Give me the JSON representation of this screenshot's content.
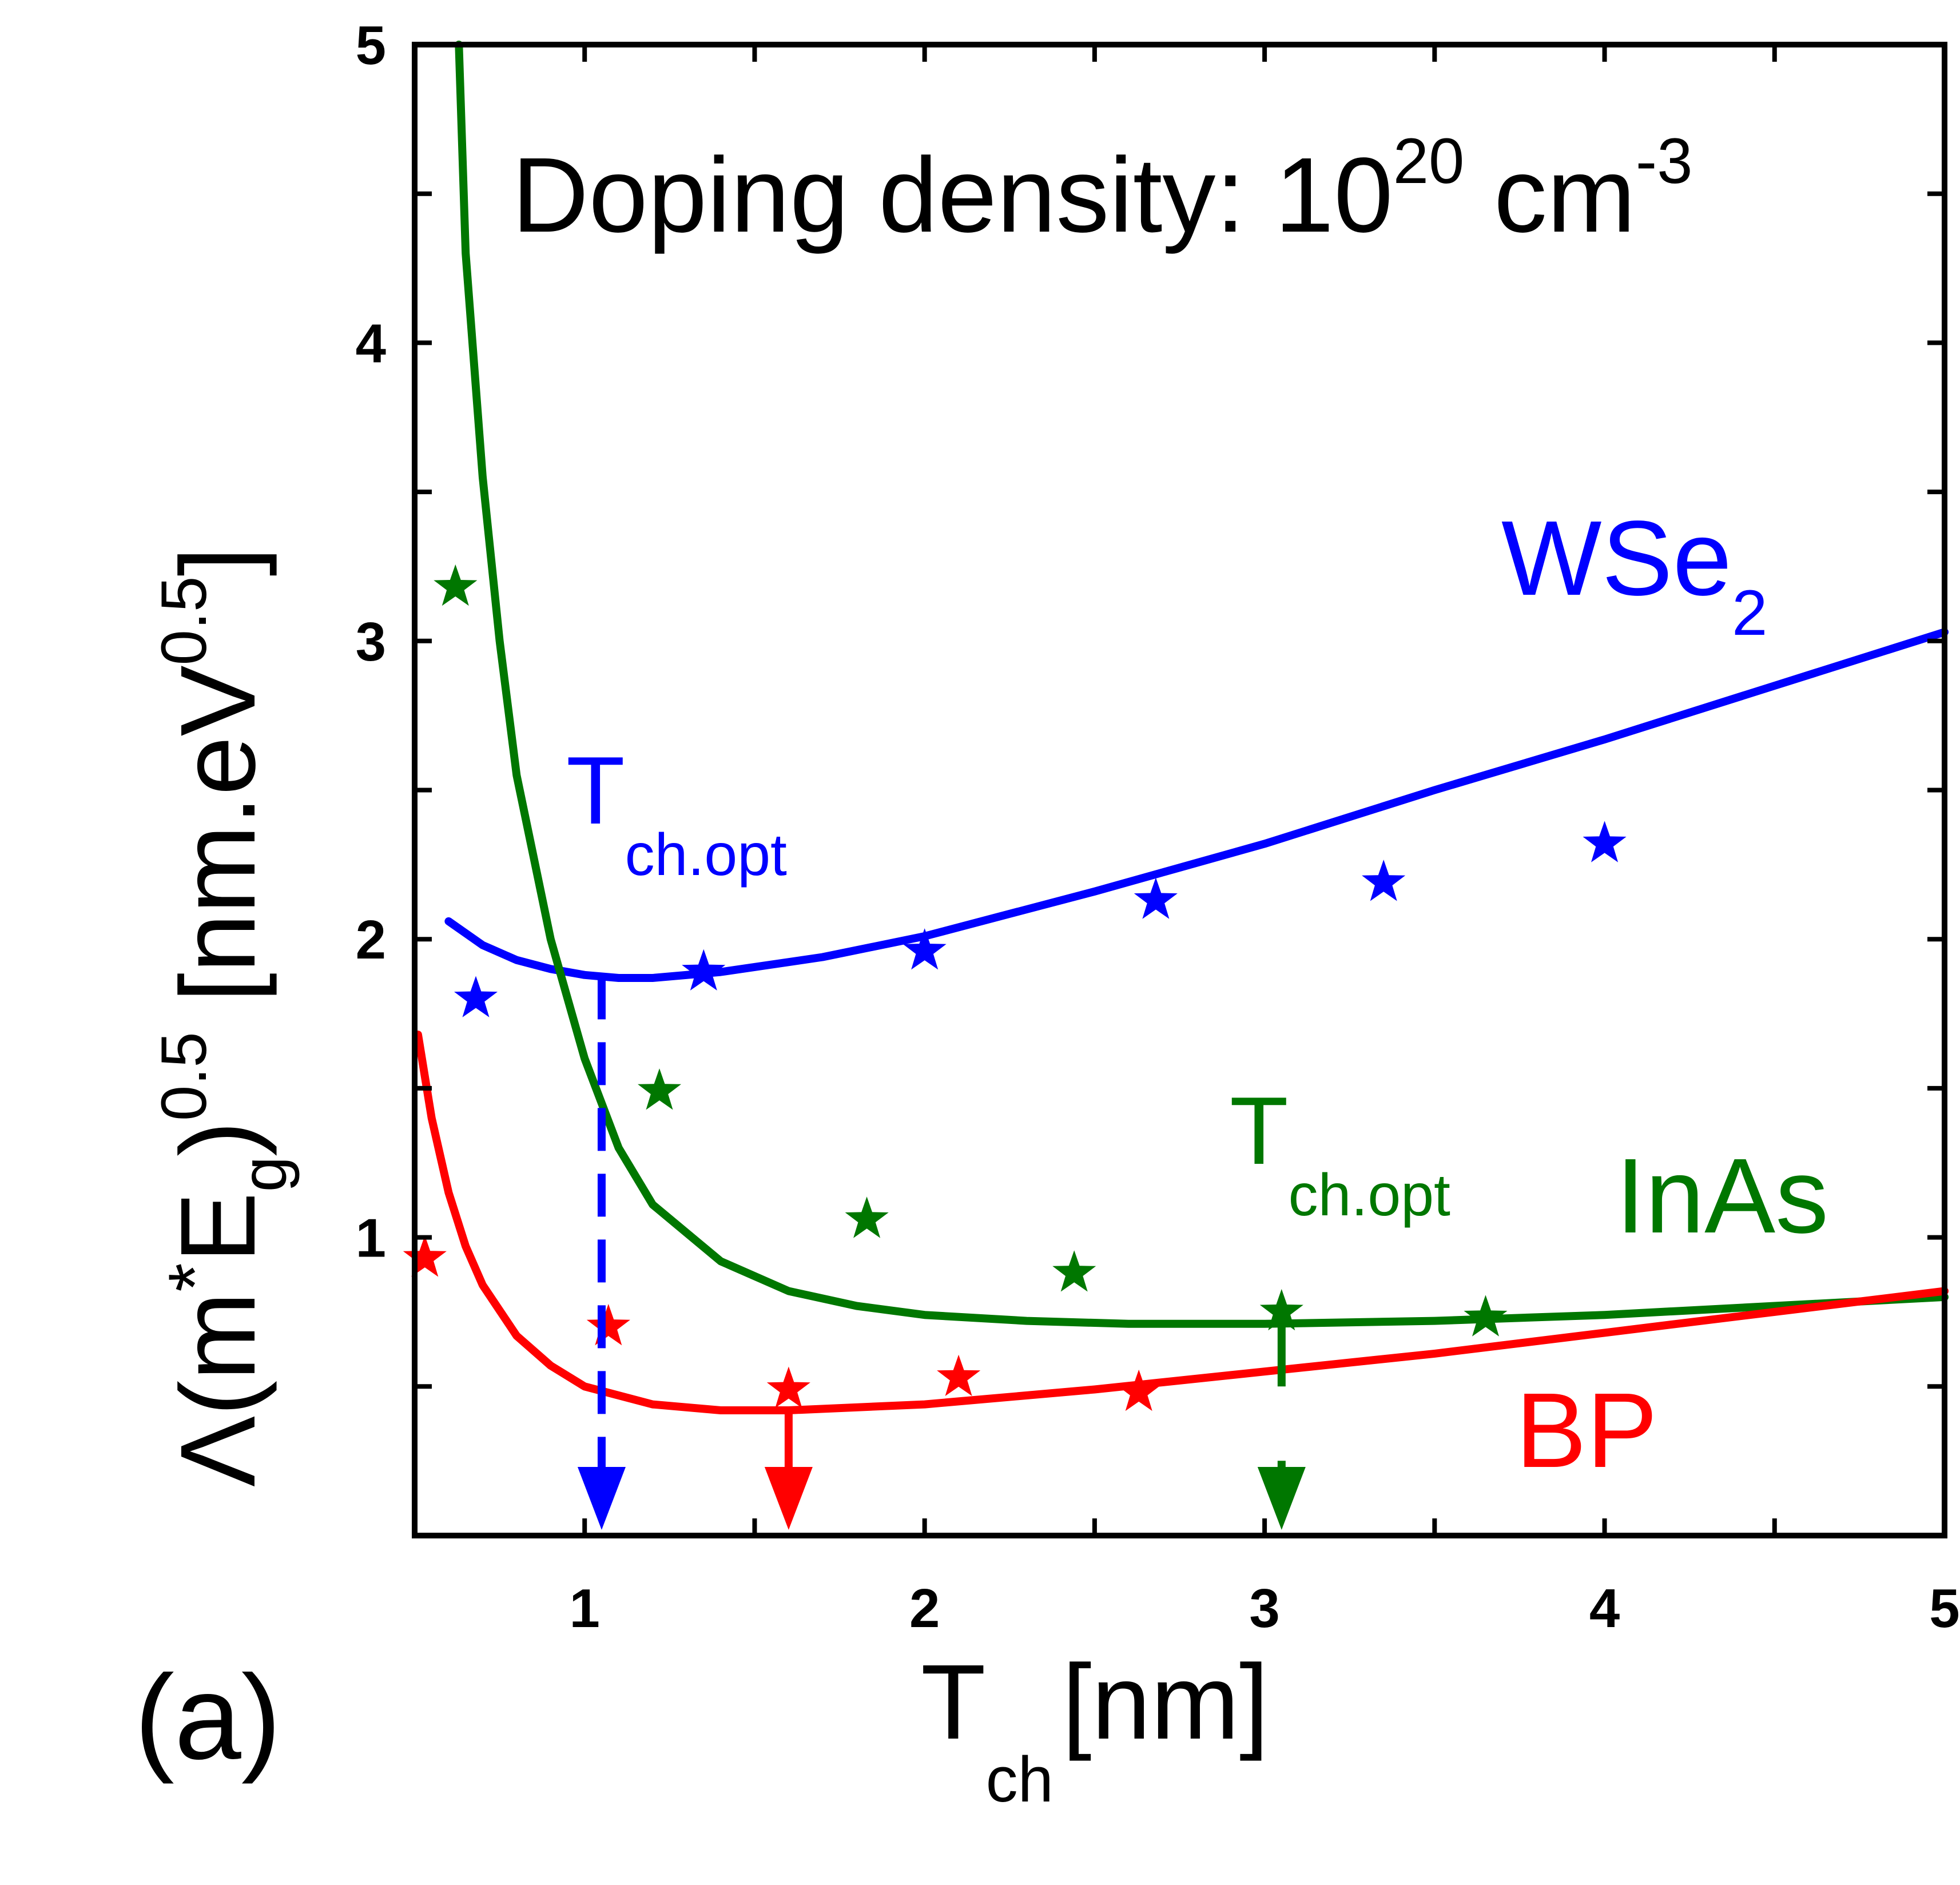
{
  "chart_data": {
    "type": "line",
    "xlabel": "T",
    "xlabel_sub": "ch",
    "xlabel_units": "[nm]",
    "ylabel": "Λ(m*Eg)^0.5 [nm.eV^0.5]",
    "ylabel_parts": {
      "lambda": "Λ(m",
      "star": "*",
      "E": "E",
      "g": "g",
      "close": ")",
      "pow": "0.5",
      "units": " [nm.eV",
      "units_pow": "0.5",
      "units_close": "]"
    },
    "xlim": [
      0.5,
      5
    ],
    "ylim": [
      0,
      5
    ],
    "xticks": [
      "1",
      "2",
      "3",
      "4",
      "5"
    ],
    "yticks": [
      "1",
      "2",
      "3",
      "4",
      "5"
    ],
    "panel_label": "(a)",
    "doping": {
      "text": "Doping density: 10",
      "exp": "20",
      "unit": " cm",
      "unit_exp": "-3"
    },
    "series": [
      {
        "name": "WSe",
        "name_sub": "2",
        "color": "#0000ff",
        "curve_x": [
          0.6,
          0.7,
          0.8,
          0.9,
          1.0,
          1.1,
          1.2,
          1.4,
          1.7,
          2.0,
          2.5,
          3.0,
          3.5,
          4.0,
          4.5,
          5.0
        ],
        "curve_y": [
          2.06,
          1.98,
          1.93,
          1.9,
          1.88,
          1.87,
          1.87,
          1.89,
          1.94,
          2.01,
          2.16,
          2.32,
          2.5,
          2.67,
          2.85,
          3.03
        ],
        "points_x": [
          0.68,
          1.35,
          2.0,
          2.68,
          3.35,
          4.0
        ],
        "points_y": [
          1.8,
          1.89,
          1.96,
          2.13,
          2.19,
          2.32
        ],
        "opt_x": 1.05,
        "opt_label": "T",
        "opt_label_sub": "ch.opt"
      },
      {
        "name": "InAs",
        "color": "#007700",
        "curve_x": [
          0.63,
          0.65,
          0.7,
          0.75,
          0.8,
          0.9,
          1.0,
          1.1,
          1.2,
          1.4,
          1.6,
          1.8,
          2.0,
          2.3,
          2.6,
          3.0,
          3.5,
          4.0,
          4.5,
          5.0
        ],
        "curve_y": [
          5.0,
          4.3,
          3.55,
          3.0,
          2.55,
          2.0,
          1.6,
          1.3,
          1.11,
          0.92,
          0.82,
          0.77,
          0.74,
          0.72,
          0.71,
          0.71,
          0.72,
          0.74,
          0.77,
          0.8
        ],
        "points_x": [
          0.62,
          1.22,
          1.83,
          2.44,
          3.05,
          3.65
        ],
        "points_y": [
          3.18,
          1.49,
          1.06,
          0.88,
          0.75,
          0.73
        ],
        "opt_x": 3.05,
        "opt_label": "T",
        "opt_label_sub": "ch.opt"
      },
      {
        "name": "BP",
        "color": "#ff0000",
        "curve_x": [
          0.51,
          0.55,
          0.6,
          0.65,
          0.7,
          0.8,
          0.9,
          1.0,
          1.2,
          1.4,
          1.6,
          2.0,
          2.5,
          3.0,
          3.5,
          4.0,
          4.5,
          5.0
        ],
        "curve_y": [
          1.68,
          1.4,
          1.15,
          0.97,
          0.84,
          0.67,
          0.57,
          0.5,
          0.44,
          0.42,
          0.42,
          0.44,
          0.49,
          0.55,
          0.61,
          0.68,
          0.75,
          0.82
        ],
        "points_x": [
          0.53,
          1.07,
          1.6,
          2.1,
          2.63
        ],
        "points_y": [
          0.93,
          0.7,
          0.49,
          0.53,
          0.48
        ],
        "opt_x": 1.6
      }
    ]
  }
}
